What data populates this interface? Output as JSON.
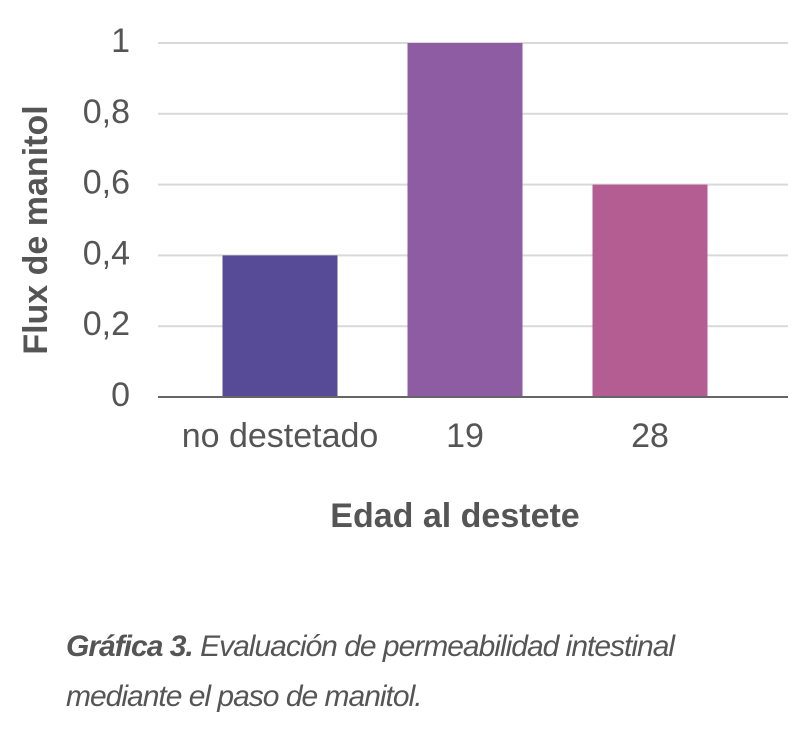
{
  "chart_data": {
    "type": "bar",
    "categories": [
      "no destetado",
      "19",
      "28"
    ],
    "values": [
      0.4,
      1,
      0.6
    ],
    "colors": [
      "#574a97",
      "#8e5ca2",
      "#b45d93"
    ],
    "ylim": [
      0,
      1
    ],
    "yticks": [
      0,
      {
        "value": 0.2,
        "label": "0,2"
      },
      {
        "value": 0.4,
        "label": "0,4"
      },
      {
        "value": 0.6,
        "label": "0,6"
      },
      {
        "value": 0.8,
        "label": "0,8"
      },
      1
    ],
    "grid": true,
    "ylabel": "Flux de manitol",
    "xlabel": "Edad al destete"
  },
  "caption": {
    "label": "Gráfica 3.",
    "text": "Evaluación de permeabilidad intestinal mediante el paso de manitol."
  }
}
